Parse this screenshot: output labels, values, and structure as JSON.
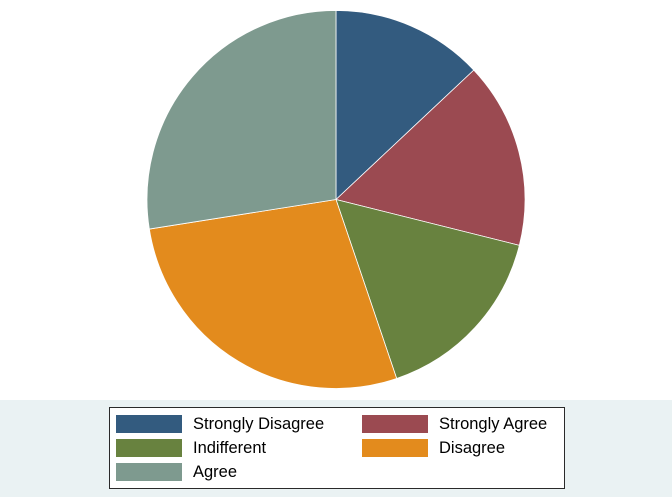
{
  "chart_data": {
    "type": "pie",
    "title": "",
    "start_angle_deg": 90,
    "direction": "clockwise",
    "legend_position": "bottom",
    "slices": [
      {
        "label": "Strongly Disagree",
        "value": 13.0,
        "color": "#335b7f"
      },
      {
        "label": "Strongly Agree",
        "value": 15.9,
        "color": "#9b4a51"
      },
      {
        "label": "Indifferent",
        "value": 15.9,
        "color": "#68823f"
      },
      {
        "label": "Disagree",
        "value": 27.7,
        "color": "#e38b1d"
      },
      {
        "label": "Agree",
        "value": 27.5,
        "color": "#7e9a8f"
      }
    ]
  },
  "legend": {
    "items": [
      {
        "label": "Strongly Disagree",
        "color": "#335b7f"
      },
      {
        "label": "Strongly Agree",
        "color": "#9b4a51"
      },
      {
        "label": "Indifferent",
        "color": "#68823f"
      },
      {
        "label": "Disagree",
        "color": "#e38b1d"
      },
      {
        "label": "Agree",
        "color": "#7e9a8f"
      }
    ]
  },
  "colors": {
    "legend_band": "#eaf2f3",
    "slice_edge": "#ffffff"
  }
}
